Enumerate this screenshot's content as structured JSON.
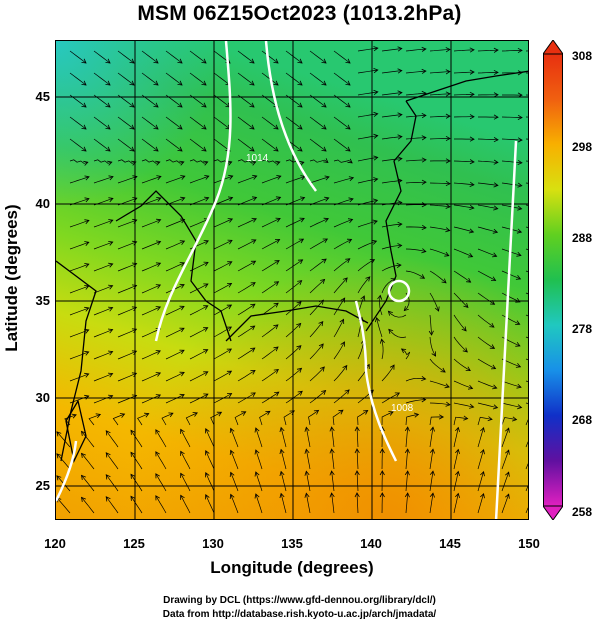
{
  "title": "MSM 06Z15Oct2023 (1013.2hPa)",
  "xlabel": "Longitude (degrees)",
  "ylabel": "Latitude  (degrees)",
  "xticks": [
    "120",
    "125",
    "130",
    "135",
    "140",
    "145",
    "150"
  ],
  "yticks": [
    "45",
    "40",
    "35",
    "30",
    "25"
  ],
  "colorbar": {
    "labels": [
      "308",
      "298",
      "288",
      "278",
      "268",
      "258"
    ],
    "min": 258,
    "max": 308
  },
  "contour_labels": [
    "1014",
    "1008"
  ],
  "credits": [
    "Drawing by DCL (https://www.gfd-dennou.org/library/dcl/)",
    "Data from http://database.rish.kyoto-u.ac.jp/arch/jmadata/"
  ],
  "colors": {
    "warm": "#f0a000",
    "mid": "#b8e010",
    "cool": "#30c040",
    "cold": "#20c8b0",
    "contour": "#ffffff"
  }
}
